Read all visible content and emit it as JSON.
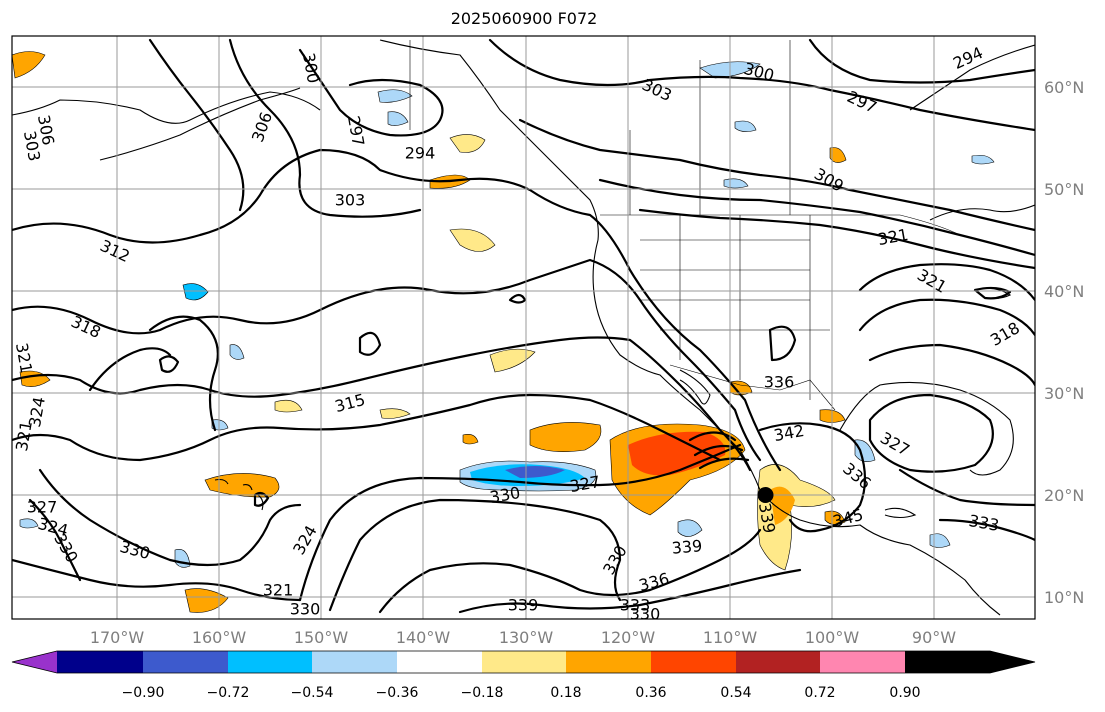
{
  "title": "2025060900 F072",
  "map": {
    "lon_labels": [
      "170°W",
      "160°W",
      "150°W",
      "140°W",
      "130°W",
      "120°W",
      "110°W",
      "100°W",
      "90°W"
    ],
    "lat_labels": [
      "60°N",
      "50°N",
      "40°N",
      "30°N",
      "20°N",
      "10°N"
    ],
    "contour_labels": [
      {
        "text": "300",
        "rot": 80
      },
      {
        "text": "306",
        "rot": -70
      },
      {
        "text": "294",
        "rot": 0
      },
      {
        "text": "297",
        "rot": 80
      },
      {
        "text": "303",
        "rot": 0
      },
      {
        "text": "303",
        "rot": 25
      },
      {
        "text": "300",
        "rot": 15
      },
      {
        "text": "297",
        "rot": 25
      },
      {
        "text": "294",
        "rot": -25
      },
      {
        "text": "303",
        "rot": 80
      },
      {
        "text": "306",
        "rot": 80
      },
      {
        "text": "312",
        "rot": 25
      },
      {
        "text": "318",
        "rot": 25
      },
      {
        "text": "321",
        "rot": 80
      },
      {
        "text": "324",
        "rot": -80
      },
      {
        "text": "321",
        "rot": -80
      },
      {
        "text": "327",
        "rot": 0
      },
      {
        "text": "324",
        "rot": 15
      },
      {
        "text": "330",
        "rot": 60
      },
      {
        "text": "330",
        "rot": 15
      },
      {
        "text": "324",
        "rot": -60
      },
      {
        "text": "321",
        "rot": 0
      },
      {
        "text": "330",
        "rot": 0
      },
      {
        "text": "315",
        "rot": -15
      },
      {
        "text": "330",
        "rot": -10
      },
      {
        "text": "327",
        "rot": -10
      },
      {
        "text": "330",
        "rot": -60
      },
      {
        "text": "339",
        "rot": -5
      },
      {
        "text": "336",
        "rot": -15
      },
      {
        "text": "333",
        "rot": 0
      },
      {
        "text": "330",
        "rot": 0
      },
      {
        "text": "339",
        "rot": 0
      },
      {
        "text": "309",
        "rot": 30
      },
      {
        "text": "321",
        "rot": -10
      },
      {
        "text": "321",
        "rot": 30
      },
      {
        "text": "318",
        "rot": -30
      },
      {
        "text": "336",
        "rot": 0
      },
      {
        "text": "342",
        "rot": -10
      },
      {
        "text": "327",
        "rot": 30
      },
      {
        "text": "336",
        "rot": 40
      },
      {
        "text": "345",
        "rot": -15
      },
      {
        "text": "339",
        "rot": 80
      },
      {
        "text": "333",
        "rot": 10
      }
    ],
    "marker": {
      "lon": -106.5,
      "lat": 20.0
    }
  },
  "colorbar": {
    "ticks": [
      "−0.90",
      "−0.72",
      "−0.54",
      "−0.36",
      "−0.18",
      "0.18",
      "0.36",
      "0.54",
      "0.72",
      "0.90"
    ],
    "colors": [
      "#9932cc",
      "#00008b",
      "#3d5acd",
      "#00bfff",
      "#add8f8",
      "#ffffff",
      "#ffe989",
      "#ffa500",
      "#ff4500",
      "#b22222",
      "#ff86b0"
    ]
  }
}
